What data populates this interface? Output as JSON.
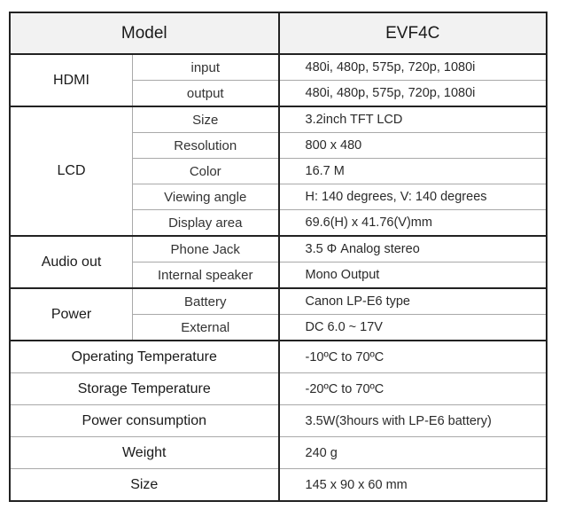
{
  "header": {
    "left": "Model",
    "right": "EVF4C"
  },
  "hdmi": {
    "label": "HDMI",
    "rows": [
      {
        "sub": "input",
        "value": "480i, 480p, 575p, 720p, 1080i"
      },
      {
        "sub": "output",
        "value": "480i, 480p, 575p, 720p, 1080i"
      }
    ]
  },
  "lcd": {
    "label": "LCD",
    "rows": [
      {
        "sub": "Size",
        "value": "3.2inch TFT LCD"
      },
      {
        "sub": "Resolution",
        "value": "800 x 480"
      },
      {
        "sub": "Color",
        "value": "16.7 M"
      },
      {
        "sub": "Viewing angle",
        "value": "H: 140 degrees, V: 140 degrees"
      },
      {
        "sub": "Display area",
        "value": "69.6(H) x 41.76(V)mm"
      }
    ]
  },
  "audio": {
    "label": "Audio out",
    "rows": [
      {
        "sub": "Phone Jack",
        "value": "3.5 Φ Analog stereo"
      },
      {
        "sub": "Internal speaker",
        "value": "Mono Output"
      }
    ]
  },
  "power": {
    "label": "Power",
    "rows": [
      {
        "sub": "Battery",
        "value": "Canon LP-E6 type"
      },
      {
        "sub": "External",
        "value": "DC 6.0 ~ 17V"
      }
    ]
  },
  "operating_temp": {
    "label": "Operating Temperature",
    "value": "-10ºC to 70ºC"
  },
  "storage_temp": {
    "label": "Storage Temperature",
    "value": "-20ºC to 70ºC"
  },
  "power_consumption": {
    "label": "Power consumption",
    "value": "3.5W(3hours with LP-E6 battery)"
  },
  "weight": {
    "label": "Weight",
    "value": "240 g"
  },
  "size": {
    "label": "Size",
    "value": "145 x 90 x 60 mm"
  }
}
